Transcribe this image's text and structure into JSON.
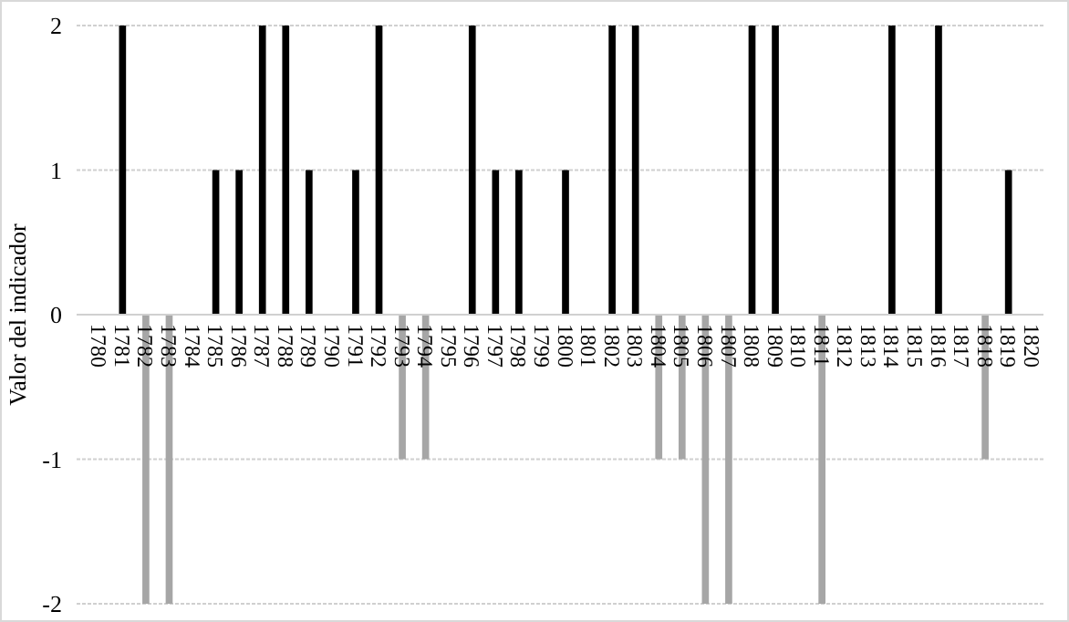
{
  "chart_data": {
    "type": "bar",
    "ylabel": "Valor del indicador",
    "categories": [
      "1780",
      "1781",
      "1782",
      "1783",
      "1784",
      "1785",
      "1786",
      "1787",
      "1788",
      "1789",
      "1790",
      "1791",
      "1792",
      "1793",
      "1794",
      "1795",
      "1796",
      "1797",
      "1798",
      "1799",
      "1800",
      "1801",
      "1802",
      "1803",
      "1804",
      "1805",
      "1806",
      "1807",
      "1808",
      "1809",
      "1810",
      "1811",
      "1812",
      "1813",
      "1814",
      "1815",
      "1816",
      "1817",
      "1818",
      "1819",
      "1820"
    ],
    "values": [
      0,
      2,
      -2,
      -2,
      0,
      1,
      1,
      2,
      2,
      1,
      0,
      1,
      2,
      -1,
      -1,
      0,
      2,
      1,
      1,
      0,
      1,
      0,
      2,
      2,
      -1,
      -1,
      -2,
      -2,
      2,
      2,
      0,
      -2,
      0,
      0,
      2,
      0,
      2,
      0,
      -1,
      1,
      0
    ],
    "colors": [
      "#000000",
      "#000000",
      "#a6a6a6",
      "#a6a6a6",
      "#000000",
      "#000000",
      "#000000",
      "#000000",
      "#000000",
      "#000000",
      "#000000",
      "#000000",
      "#000000",
      "#a6a6a6",
      "#a6a6a6",
      "#000000",
      "#000000",
      "#000000",
      "#000000",
      "#000000",
      "#000000",
      "#000000",
      "#000000",
      "#000000",
      "#a6a6a6",
      "#a6a6a6",
      "#a6a6a6",
      "#a6a6a6",
      "#000000",
      "#000000",
      "#000000",
      "#a6a6a6",
      "#000000",
      "#000000",
      "#000000",
      "#000000",
      "#000000",
      "#000000",
      "#a6a6a6",
      "#000000",
      "#000000"
    ],
    "ylim": [
      -2,
      2
    ],
    "yticks": [
      -2,
      -1,
      0,
      1,
      2
    ],
    "grid": "y"
  }
}
